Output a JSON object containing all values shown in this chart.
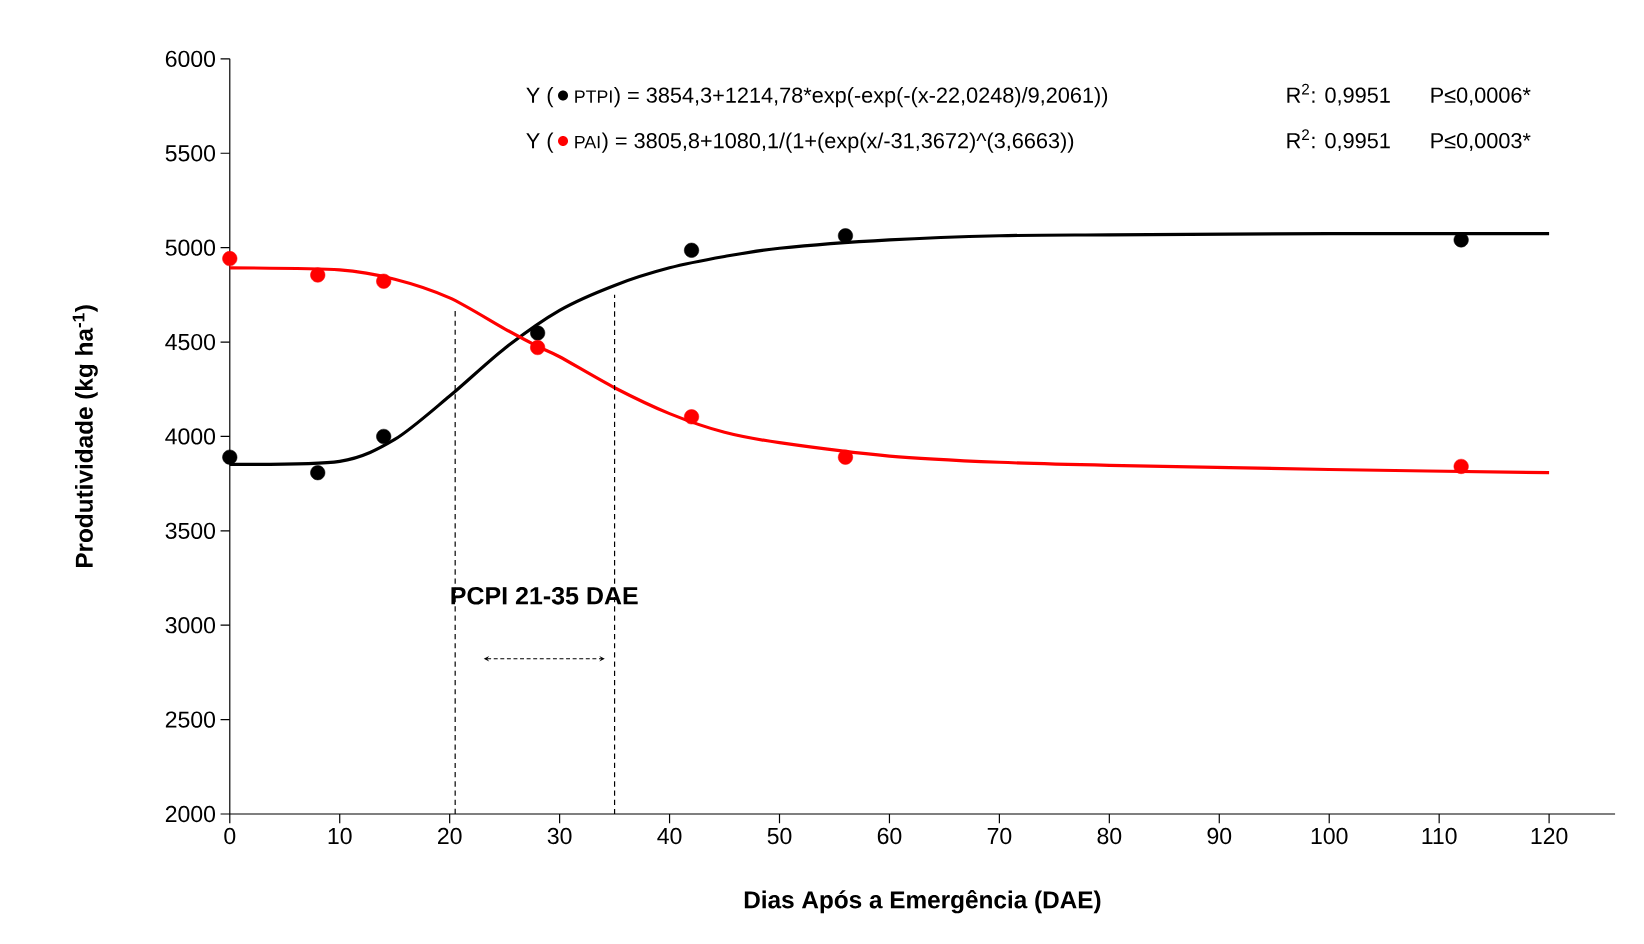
{
  "chart_data": {
    "type": "scatter",
    "xlabel": "Dias Após a Emergência (DAE)",
    "ylabel": "Produtividade (kg ha$^{-1}$)",
    "xlim": [
      0,
      126
    ],
    "ylim": [
      2000,
      6000
    ],
    "xticks": [
      0,
      10,
      20,
      30,
      40,
      50,
      60,
      70,
      80,
      90,
      100,
      110,
      120
    ],
    "yticks": [
      2000,
      2500,
      3000,
      3500,
      4000,
      4500,
      5000,
      5500,
      6000
    ],
    "legend": "top",
    "series": [
      {
        "name": "PTPI",
        "marker": "circle",
        "color": "#000000",
        "x": [
          0,
          8,
          14,
          28,
          42,
          56,
          112
        ],
        "values": [
          3890,
          3808,
          4000,
          4548,
          4986,
          5063,
          5041
        ]
      },
      {
        "name": "PAI",
        "marker": "circle",
        "color": "#ff0000",
        "x": [
          0,
          8,
          14,
          28,
          42,
          56,
          112
        ],
        "values": [
          4942,
          4855,
          4822,
          4471,
          4104,
          3890,
          3841
        ]
      },
      {
        "type": "line",
        "marker": "none",
        "line_style": "solid",
        "color": "#000000",
        "x": [
          0,
          10,
          15,
          20,
          25,
          30,
          35,
          40,
          45,
          50,
          60,
          70,
          80,
          100,
          120
        ],
        "values": [
          3852,
          3868,
          3984,
          4214,
          4466,
          4668,
          4800,
          4893,
          4953,
          4997,
          5041,
          5063,
          5068,
          5074,
          5074
        ]
      },
      {
        "type": "line",
        "marker": "none",
        "line_style": "solid",
        "color": "#ff0000",
        "x": [
          0,
          10,
          15,
          20,
          25,
          28,
          30,
          35,
          40,
          45,
          50,
          60,
          70,
          80,
          100,
          120
        ],
        "values": [
          4893,
          4882,
          4833,
          4734,
          4570,
          4477,
          4422,
          4258,
          4121,
          4022,
          3967,
          3896,
          3863,
          3847,
          3825,
          3808
        ]
      },
      {
        "type": "line",
        "marker": "none",
        "line_style": "dashed",
        "color": "#000000",
        "x": [
          20.5,
          20.5
        ],
        "values": [
          2000,
          4680
        ]
      },
      {
        "type": "line",
        "marker": "none",
        "line_style": "dashed",
        "color": "#000000",
        "x": [
          35,
          35
        ],
        "values": [
          2000,
          4750
        ]
      }
    ],
    "annotations": [
      "Y (",
      ") = 3854,3+1214,78*exp(-exp(-(x-22,0248)/9,2061))",
      "R$^{2}$: 0,9951",
      "P≤0,0006*",
      "Y (",
      ") = 3805,8+1080,1/(1+(exp(x/-31,3672)^(3,6663))",
      "R$^{2}$: 0,9951",
      "P≤0,0003*",
      "PCPI 21-35 DAE"
    ]
  }
}
